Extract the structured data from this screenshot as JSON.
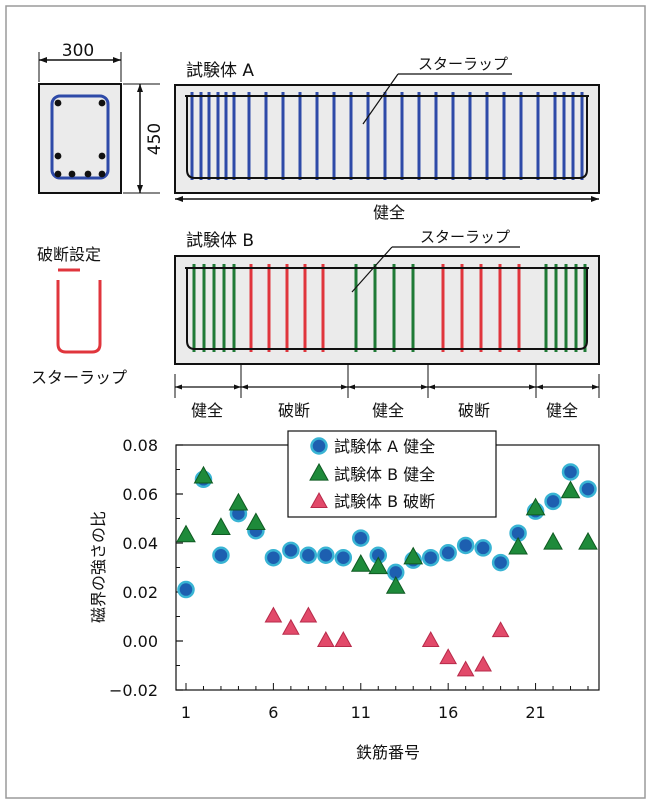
{
  "diagram": {
    "section": {
      "width_label": "300",
      "height_label": "450"
    },
    "specimen_a": {
      "title": "試験体 A",
      "stirrup_label": "スターラップ",
      "condition": "健全"
    },
    "specimen_b": {
      "title": "試験体 B",
      "stirrup_label": "スターラップ",
      "zones": [
        "健全",
        "破断",
        "健全",
        "破断",
        "健全"
      ]
    },
    "break_detail": {
      "title": "破断設定",
      "label": "スターラップ"
    }
  },
  "colors": {
    "blue": "#2e4aa8",
    "green": "#1f7a36",
    "red": "#e0353c",
    "marker_blue": "#1d5fb0",
    "marker_blue_edge": "#39b4d4",
    "marker_green": "#1e8a3a",
    "marker_pink": "#e24a6a",
    "concrete": "#ebebeb"
  },
  "chart_data": {
    "type": "scatter",
    "xlabel": "鉄筋番号",
    "ylabel": "磁界の強さの比",
    "xticks": [
      1,
      6,
      11,
      16,
      21
    ],
    "yticks": [
      "0.08",
      "0.06",
      "0.04",
      "0.02",
      "0.00",
      "−0.02"
    ],
    "xlim": [
      0,
      25
    ],
    "ylim": [
      -0.02,
      0.08
    ],
    "legend_position": "top-center",
    "series": [
      {
        "name": "試験体 A 健全",
        "marker": "circle",
        "x": [
          1,
          2,
          3,
          4,
          5,
          6,
          7,
          8,
          9,
          10,
          11,
          12,
          13,
          14,
          15,
          16,
          17,
          18,
          19,
          20,
          21,
          22,
          23,
          24
        ],
        "y": [
          0.021,
          0.066,
          0.035,
          0.052,
          0.045,
          0.034,
          0.037,
          0.035,
          0.035,
          0.034,
          0.042,
          0.035,
          0.028,
          0.033,
          0.034,
          0.036,
          0.039,
          0.038,
          0.032,
          0.044,
          0.053,
          0.057,
          0.069,
          0.062
        ]
      },
      {
        "name": "試験体 B 健全",
        "marker": "triangle",
        "x": [
          1,
          2,
          3,
          4,
          5,
          11,
          12,
          13,
          14,
          20,
          21,
          22,
          23,
          24
        ],
        "y": [
          0.043,
          0.067,
          0.046,
          0.056,
          0.048,
          0.031,
          0.03,
          0.022,
          0.034,
          0.038,
          0.054,
          0.04,
          0.061,
          0.04
        ]
      },
      {
        "name": "試験体 B 破断",
        "marker": "triangle",
        "x": [
          6,
          7,
          8,
          9,
          10,
          15,
          16,
          17,
          18,
          19
        ],
        "y": [
          0.01,
          0.005,
          0.01,
          0.0,
          0.0,
          0.0,
          -0.007,
          -0.012,
          -0.01,
          0.004
        ]
      }
    ]
  }
}
